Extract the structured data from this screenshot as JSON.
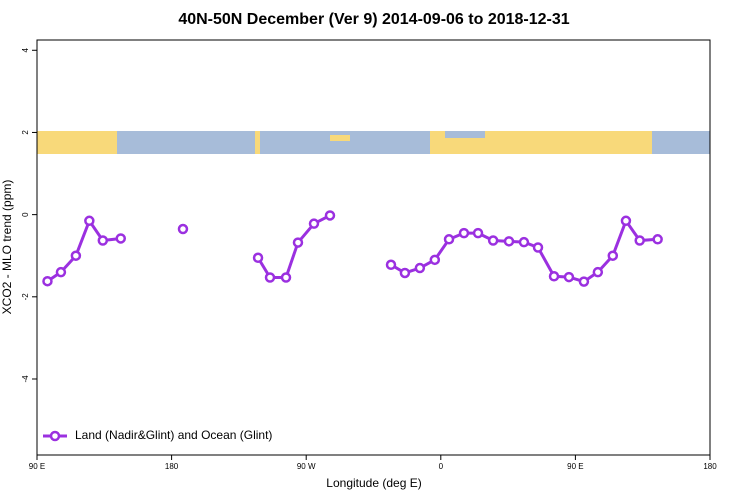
{
  "chart_data": {
    "type": "line",
    "title": "40N-50N December (Ver 9)   2014-09-06 to 2018-12-31",
    "xlabel": "Longitude (deg E)",
    "ylabel": "XCO2 - MLO trend (ppm)",
    "xlim": [
      90,
      540
    ],
    "ylim": [
      -5.85,
      4.25
    ],
    "xticks": [
      {
        "value": 90,
        "label": "90 E"
      },
      180,
      {
        "value": 270,
        "label": "90 W"
      },
      {
        "value": 360,
        "label": "0"
      },
      {
        "value": 450,
        "label": "90 E"
      },
      {
        "value": 540,
        "label": "180"
      }
    ],
    "yticks": [
      4,
      2,
      0,
      -2,
      -4
    ],
    "legend": "bottom-left",
    "x": [
      97,
      106,
      116,
      125,
      134,
      146,
      166,
      187.6,
      210,
      237.8,
      245.8,
      256.5,
      264.5,
      275.2,
      285.9,
      306,
      326.7,
      336,
      346,
      356,
      365.5,
      375.5,
      384.9,
      395,
      405.6,
      415.6,
      425,
      435.7,
      445.7,
      455.7,
      465,
      475,
      483.8,
      493,
      505
    ],
    "series": [
      {
        "name": "Land (Nadir&Glint) and Ocean (Glint)",
        "color": "#9b30e0",
        "values": [
          -1.62,
          -1.4,
          -1.0,
          -0.15,
          -0.63,
          -0.58,
          null,
          -0.35,
          null,
          -1.05,
          -1.53,
          -1.53,
          -0.68,
          -0.22,
          -0.02,
          null,
          -1.22,
          -1.42,
          -1.3,
          -1.1,
          -0.6,
          -0.45,
          -0.45,
          -0.63,
          -0.65,
          -0.67,
          -0.8,
          -1.5,
          -1.52,
          -1.63,
          -1.4,
          -1.0,
          -0.15,
          -0.63,
          -0.6
        ]
      }
    ]
  }
}
